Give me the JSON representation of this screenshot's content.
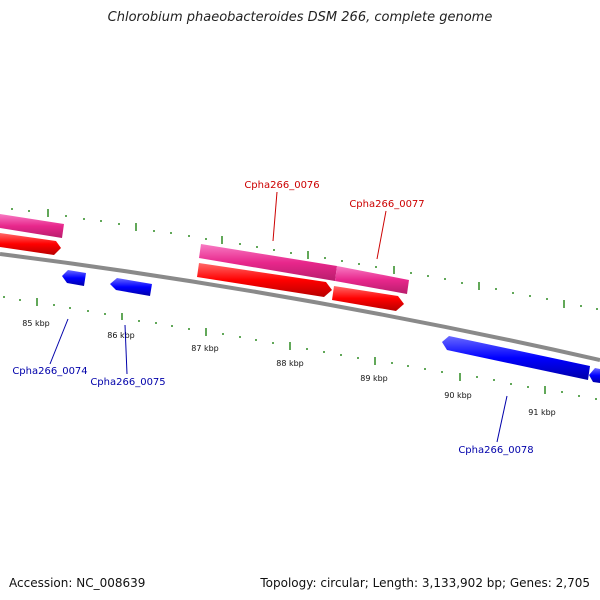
{
  "title": "Chlorobium phaeobacteroides DSM 266, complete genome",
  "footer": {
    "accession": "Accession: NC_008639",
    "summary": "Topology: circular; Length: 3,133,902 bp; Genes: 2,705"
  },
  "scale_labels": [
    "85 kbp",
    "86 kbp",
    "87 kbp",
    "88 kbp",
    "89 kbp",
    "90 kbp",
    "91 kbp"
  ],
  "gene_labels": {
    "g0074": "Cpha266_0074",
    "g0075": "Cpha266_0075",
    "g0076": "Cpha266_0076",
    "g0077": "Cpha266_0077",
    "g0078": "Cpha266_0078"
  },
  "colors": {
    "forward_cds": "#ff0000",
    "forward_gene": "#e8278c",
    "reverse_cds": "#0000ff",
    "backbone": "#8a8a8a",
    "ticks": "#2e8b22",
    "forward_label": "#cc0000",
    "reverse_label": "#0000aa"
  }
}
